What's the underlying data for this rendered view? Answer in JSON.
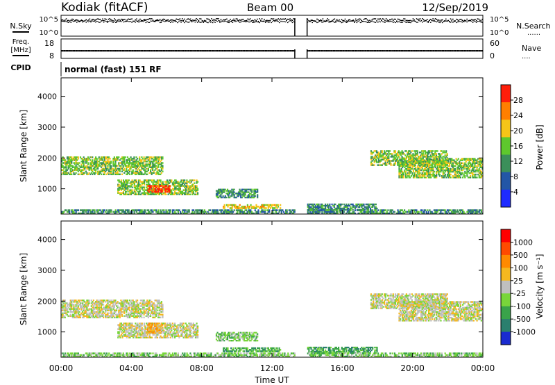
{
  "header": {
    "station": "Kodiak (fitACF)",
    "beam": "Beam 00",
    "date": "12/Sep/2019"
  },
  "summary": {
    "nsky_label": "N.Sky",
    "nsearch_label": "N.Search",
    "freq_label": "Freq.",
    "mhz_label": "[MHz]",
    "nave_label": "Nave",
    "cpid_label": "CPID",
    "cpid_value": "normal (fast) 151 RF",
    "noise_ticks_left": [
      "10^5",
      "10^0"
    ],
    "noise_ticks_right": [
      "10^5",
      "10^0"
    ],
    "freq_ticks": [
      "18",
      "8"
    ],
    "nave_ticks": [
      "60",
      "0"
    ],
    "dotted_marker": "......",
    "dotted_marker_short": "...."
  },
  "chart_data": [
    {
      "type": "heatmap",
      "name": "power",
      "ylabel": "Slant Range [km]",
      "yticks": [
        "1000",
        "2000",
        "3000",
        "4000"
      ],
      "ylim": [
        180,
        4600
      ],
      "xlim_hours": [
        0,
        24
      ],
      "data_gap_hours": [
        13.3,
        14.0
      ],
      "colorbar": {
        "label": "Power [dB]",
        "ticks": [
          "4",
          "8",
          "12",
          "16",
          "20",
          "24",
          "28"
        ],
        "colors": [
          "#1e2bff",
          "#2356a6",
          "#3b8f5a",
          "#5ec82d",
          "#f5c518",
          "#ff7f00",
          "#ff1e0a"
        ]
      },
      "bands": [
        {
          "t0": 0.0,
          "t1": 5.8,
          "r0": 1450,
          "r1": 2050,
          "level": 3
        },
        {
          "t0": 3.2,
          "t1": 7.8,
          "r0": 800,
          "r1": 1300,
          "level": 3
        },
        {
          "t0": 4.9,
          "t1": 6.2,
          "r0": 880,
          "r1": 1120,
          "level": 6
        },
        {
          "t0": 8.8,
          "t1": 11.2,
          "r0": 700,
          "r1": 1000,
          "level": 2
        },
        {
          "t0": 9.2,
          "t1": 12.5,
          "r0": 350,
          "r1": 500,
          "level": 4
        },
        {
          "t0": 14.0,
          "t1": 18.0,
          "r0": 300,
          "r1": 520,
          "level": 2
        },
        {
          "t0": 17.6,
          "t1": 22.0,
          "r0": 1750,
          "r1": 2250,
          "level": 3
        },
        {
          "t0": 19.2,
          "t1": 24.0,
          "r0": 1350,
          "r1": 2000,
          "level": 3
        },
        {
          "t0": 0.0,
          "t1": 24.0,
          "r0": 180,
          "r1": 330,
          "level": 2
        }
      ]
    },
    {
      "type": "heatmap",
      "name": "velocity",
      "ylabel": "Slant Range [km]",
      "yticks": [
        "1000",
        "2000",
        "3000",
        "4000"
      ],
      "ylim": [
        180,
        4600
      ],
      "xlim_hours": [
        0,
        24
      ],
      "data_gap_hours": [
        13.3,
        14.0
      ],
      "xticks": [
        "00:00",
        "04:00",
        "08:00",
        "12:00",
        "16:00",
        "20:00",
        "00:00"
      ],
      "xlabel": "Time UT",
      "colorbar": {
        "label": "Velocity [m s⁻¹]",
        "ticks": [
          "1000",
          "500",
          "100",
          "25",
          "-25",
          "-100",
          "-500",
          "-1000"
        ],
        "colors": [
          "#1a2bd0",
          "#2a7f6e",
          "#39a34a",
          "#79d63a",
          "#bfbfbf",
          "#f5b81f",
          "#ff8a00",
          "#ff4a00",
          "#ff0000"
        ]
      },
      "bands": [
        {
          "t0": 0.0,
          "t1": 5.8,
          "r0": 1450,
          "r1": 2050,
          "level": 4
        },
        {
          "t0": 3.2,
          "t1": 7.8,
          "r0": 800,
          "r1": 1300,
          "level": 4
        },
        {
          "t0": 4.9,
          "t1": 5.8,
          "r0": 950,
          "r1": 1300,
          "level": 5
        },
        {
          "t0": 8.8,
          "t1": 11.2,
          "r0": 700,
          "r1": 1000,
          "level": 3
        },
        {
          "t0": 9.2,
          "t1": 12.5,
          "r0": 350,
          "r1": 500,
          "level": 2
        },
        {
          "t0": 14.0,
          "t1": 18.0,
          "r0": 300,
          "r1": 520,
          "level": 2
        },
        {
          "t0": 17.6,
          "t1": 22.0,
          "r0": 1750,
          "r1": 2250,
          "level": 4
        },
        {
          "t0": 19.2,
          "t1": 24.0,
          "r0": 1350,
          "r1": 2000,
          "level": 4
        },
        {
          "t0": 0.0,
          "t1": 24.0,
          "r0": 180,
          "r1": 330,
          "level": 3
        }
      ]
    }
  ]
}
